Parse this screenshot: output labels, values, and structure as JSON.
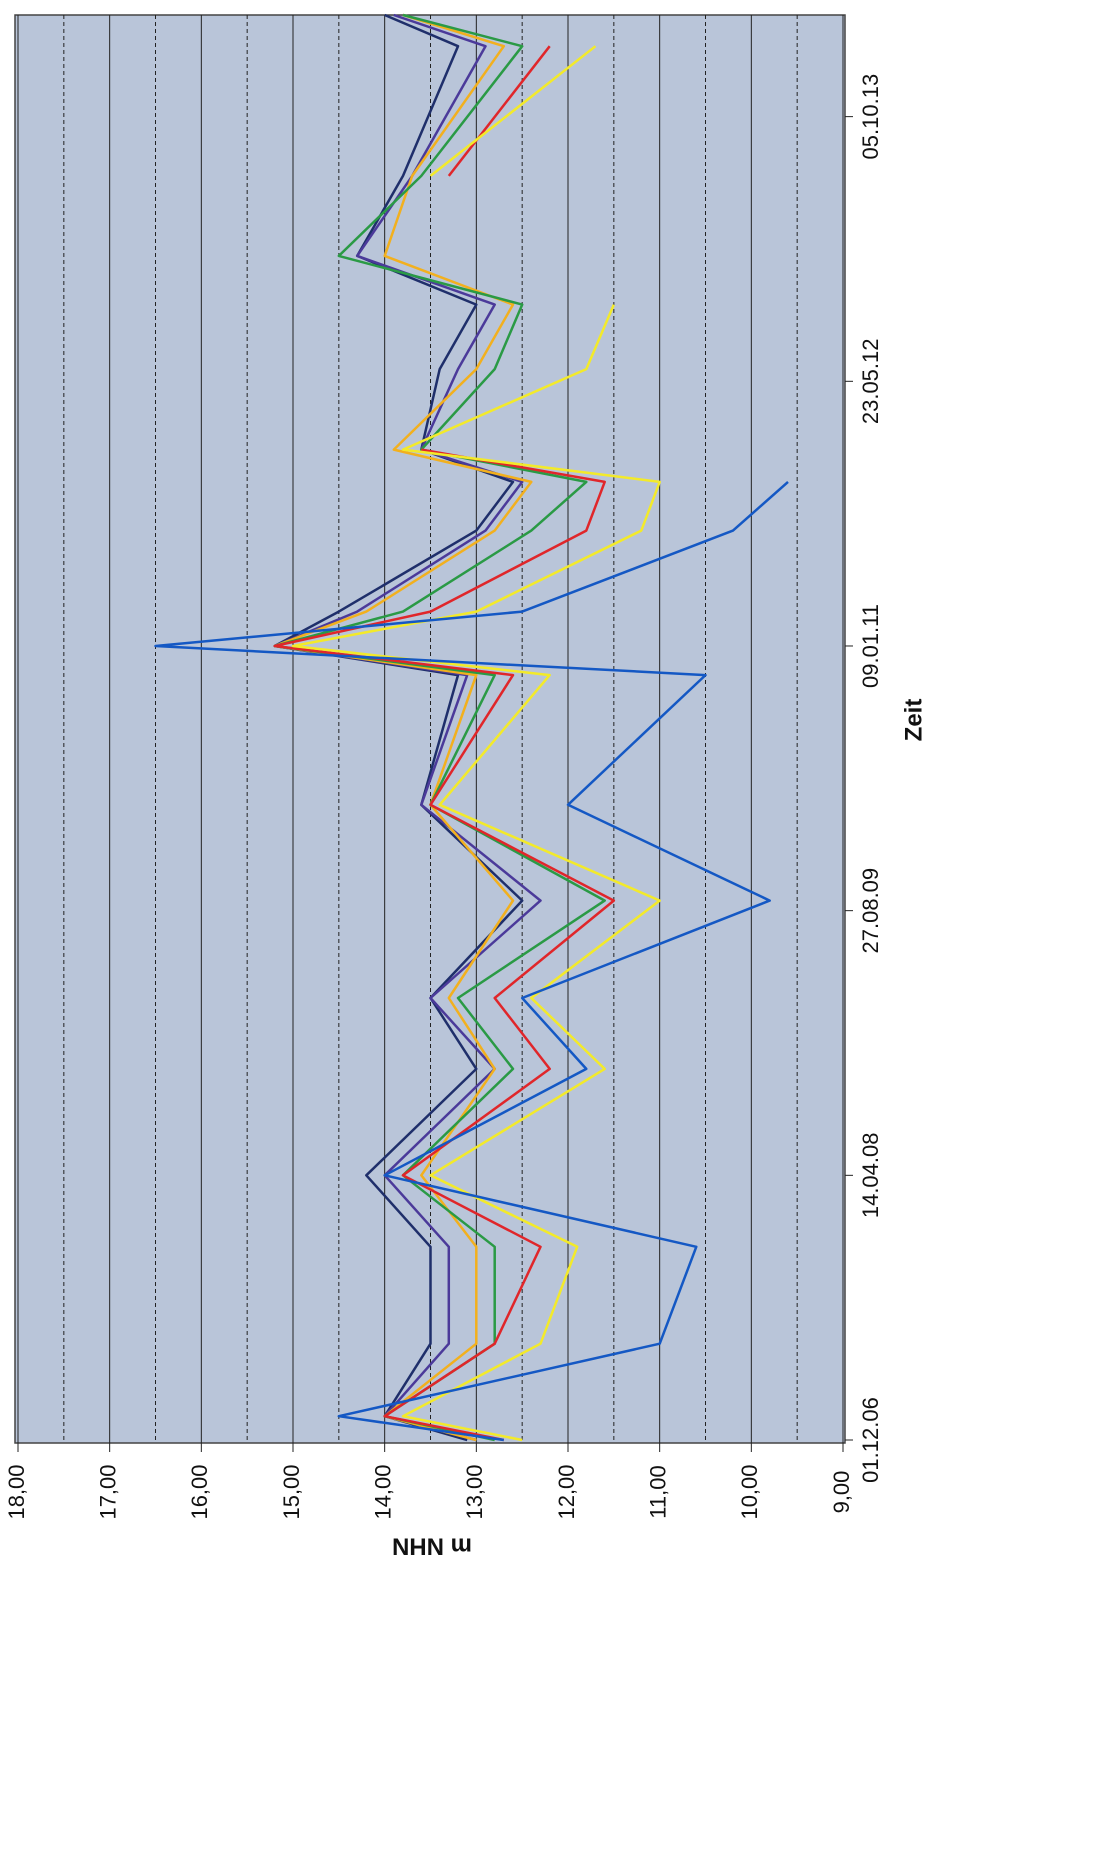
{
  "chart_data": {
    "type": "line",
    "x_label": "Zeit",
    "y_label": "m NHN",
    "x": [
      "01.12.06",
      "15.01.07",
      "01.06.07",
      "01.12.07",
      "14.04.08",
      "01.11.08",
      "15.03.09",
      "15.09.09",
      "15.03.10",
      "15.11.10",
      "09.01.11",
      "15.03.11",
      "15.08.11",
      "15.11.11",
      "15.01.12",
      "15.06.12",
      "15.10.12",
      "15.01.13",
      "15.06.13",
      "15.02.14",
      "15.04.14"
    ],
    "xlim": [
      "01.12.06",
      "15.04.14"
    ],
    "xticks": [
      "01.12.06",
      "14.04.08",
      "27.08.09",
      "09.01.11",
      "23.05.12",
      "05.10.13"
    ],
    "ylim": [
      18,
      9
    ],
    "yticks": [
      {
        "value": 18,
        "label": "18,00"
      },
      {
        "value": 17,
        "label": "17,00"
      },
      {
        "value": 16,
        "label": "16,00"
      },
      {
        "value": 15,
        "label": "15,00"
      },
      {
        "value": 14,
        "label": "14,00"
      },
      {
        "value": 13,
        "label": "13,00"
      },
      {
        "value": 12,
        "label": "12,00"
      },
      {
        "value": 11,
        "label": "11,00"
      },
      {
        "value": 10,
        "label": "10,00"
      },
      {
        "value": 9,
        "label": "9,00"
      }
    ],
    "minor_ticks": [
      17.5,
      16.5,
      15.5,
      14.5,
      13.5,
      12.5,
      11.5,
      10.5,
      9.5
    ],
    "grid": true,
    "background": "#b9c5d9",
    "series": [
      {
        "color": "#1f2f6b",
        "values": [
          13.1,
          14.0,
          13.5,
          13.5,
          14.2,
          13.0,
          13.5,
          12.5,
          13.6,
          13.2,
          15.2,
          14.5,
          13.0,
          12.6,
          13.6,
          13.4,
          13.0,
          14.3,
          13.8,
          13.2,
          14.0
        ]
      },
      {
        "color": "#4b3a9a",
        "values": [
          13.0,
          14.0,
          13.3,
          13.3,
          14.0,
          12.8,
          13.5,
          12.3,
          13.6,
          13.1,
          15.2,
          14.3,
          12.9,
          12.5,
          13.6,
          13.2,
          12.8,
          14.3,
          13.7,
          12.9,
          13.9
        ]
      },
      {
        "color": "#f2b01e",
        "values": [
          13.0,
          14.0,
          13.0,
          13.0,
          13.6,
          12.8,
          13.3,
          12.6,
          13.5,
          13.0,
          15.2,
          14.2,
          12.8,
          12.4,
          13.9,
          13.0,
          12.6,
          14.0,
          13.7,
          12.7,
          13.8
        ]
      },
      {
        "color": "#2a9a45",
        "values": [
          12.8,
          14.0,
          12.8,
          12.8,
          13.8,
          12.6,
          13.2,
          11.6,
          13.5,
          12.8,
          15.2,
          13.8,
          12.4,
          11.8,
          13.6,
          12.8,
          12.5,
          14.5,
          13.6,
          12.5,
          13.8
        ]
      },
      {
        "color": "#e0262a",
        "values": [
          12.7,
          14.0,
          12.8,
          12.3,
          13.8,
          12.2,
          12.8,
          11.5,
          13.5,
          12.6,
          15.2,
          13.5,
          11.8,
          11.6,
          13.6,
          null,
          null,
          null,
          13.3,
          12.2,
          null
        ]
      },
      {
        "color": "#f3ea2a",
        "values": [
          12.5,
          13.8,
          12.3,
          11.9,
          13.5,
          11.6,
          12.4,
          11.0,
          13.4,
          12.2,
          15.0,
          13.0,
          11.2,
          11.0,
          13.8,
          11.8,
          11.5,
          null,
          13.5,
          11.7,
          null
        ]
      },
      {
        "color": "#1458c4",
        "values": [
          12.7,
          14.5,
          11.0,
          10.6,
          14.0,
          11.8,
          12.5,
          9.8,
          12.0,
          10.5,
          16.5,
          12.5,
          10.2,
          9.6,
          null,
          null,
          null,
          null,
          null,
          null,
          null
        ]
      }
    ]
  }
}
